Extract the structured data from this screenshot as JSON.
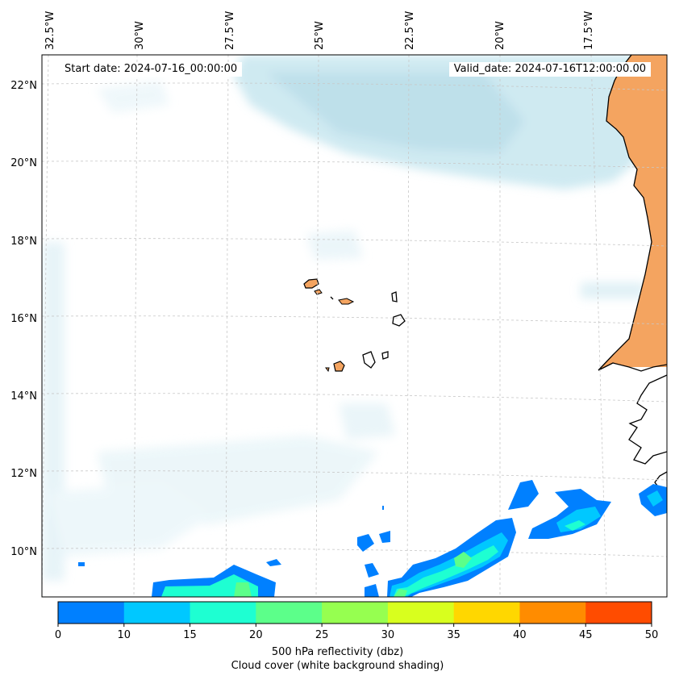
{
  "header": {
    "start_date": "Start date: 2024-07-16_00:00:00",
    "valid_date": "Valid_date: 2024-07-16T12:00:00.00"
  },
  "axes": {
    "longitude_labels": [
      "32.5°W",
      "30°W",
      "27.5°W",
      "25°W",
      "22.5°W",
      "20°W",
      "17.5°W"
    ],
    "latitude_labels": [
      "22°N",
      "20°N",
      "18°N",
      "16°N",
      "14°N",
      "12°N",
      "10°N"
    ]
  },
  "colorbar": {
    "ticks": [
      "0",
      "10",
      "15",
      "20",
      "25",
      "30",
      "35",
      "40",
      "45",
      "50"
    ],
    "colors": [
      "#0080ff",
      "#00c8ff",
      "#1effd2",
      "#5cff8a",
      "#96ff50",
      "#d8ff1e",
      "#ffd700",
      "#ff8c00",
      "#ff4c00"
    ],
    "label": "500 hPa reflectivity (dbz)",
    "sublabel": "Cloud cover (white background shading)"
  },
  "colors": {
    "land": "#f4a460",
    "cloud_cover": "#add8e6",
    "coastline": "#000000",
    "gridline": "#c8c8c8"
  }
}
